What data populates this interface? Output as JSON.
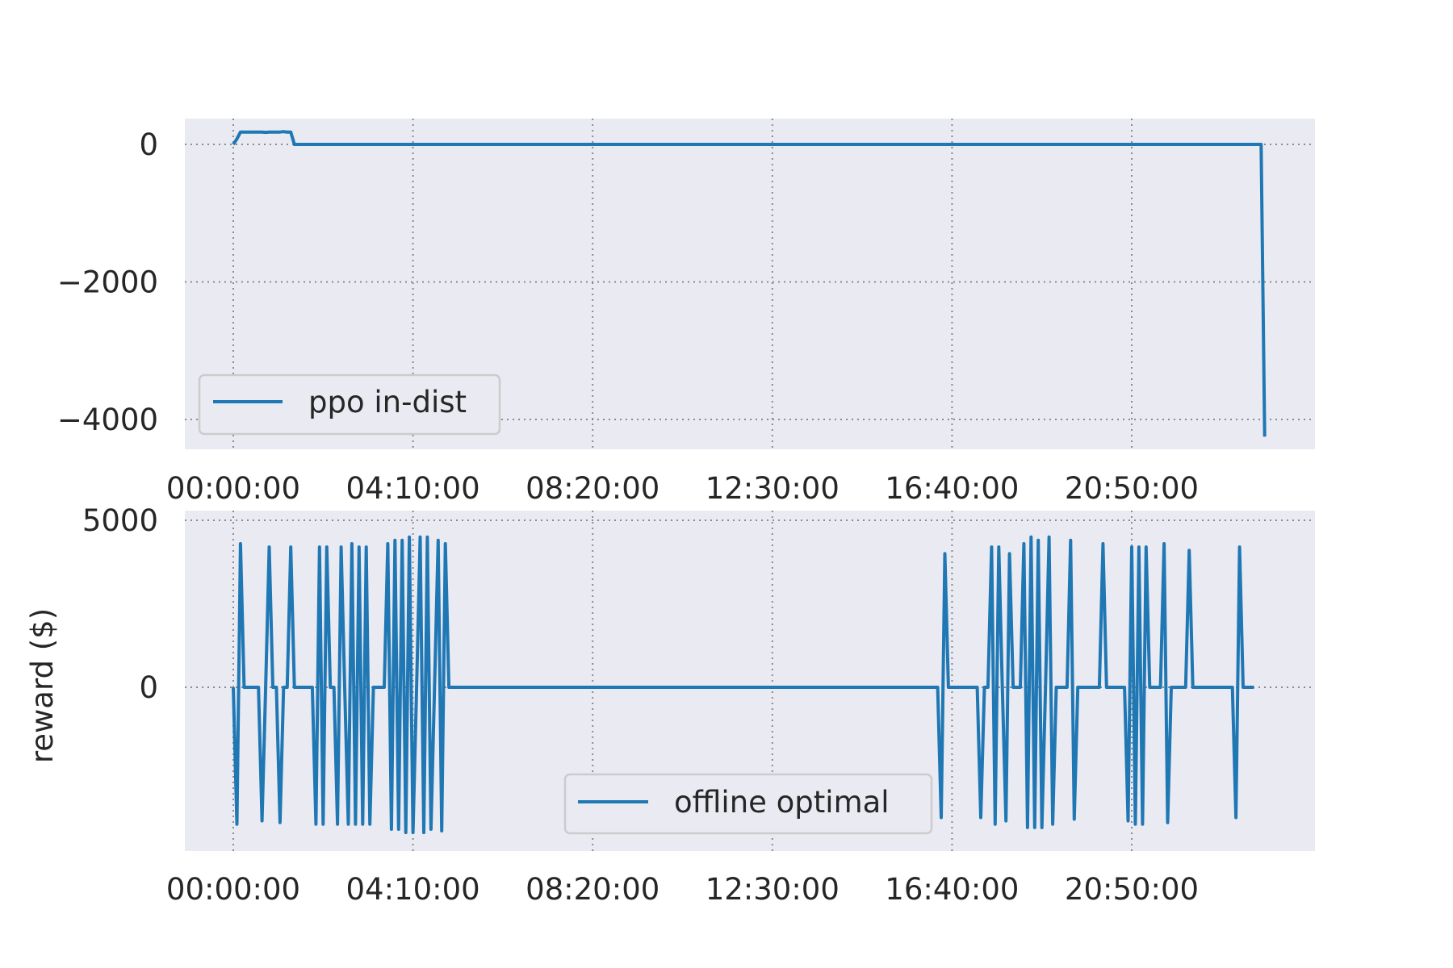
{
  "chart_data": [
    {
      "type": "line",
      "ylabel": "",
      "ylim": [
        -4500,
        380
      ],
      "xlim": [
        "00:00:00",
        "28:47:00"
      ],
      "x_ticks": [
        "00:00:00",
        "04:10:00",
        "08:20:00",
        "12:30:00",
        "16:40:00",
        "20:50:00"
      ],
      "y_ticks": [
        {
          "value": 0,
          "label": "0"
        },
        {
          "value": -2000,
          "label": "−2000"
        },
        {
          "value": -4000,
          "label": "−4000"
        }
      ],
      "grid": true,
      "legend": "lower-left",
      "color": "#1f77b4",
      "series": [
        {
          "name": "ppo in-dist",
          "points": [
            [
              "00:00:00",
              0
            ],
            [
              "00:05:00",
              80
            ],
            [
              "00:10:00",
              180
            ],
            [
              "00:40:00",
              180
            ],
            [
              "00:45:00",
              175
            ],
            [
              "00:50:00",
              180
            ],
            [
              "01:05:00",
              180
            ],
            [
              "01:10:00",
              185
            ],
            [
              "01:15:00",
              180
            ],
            [
              "01:20:00",
              180
            ],
            [
              "01:25:00",
              0
            ],
            [
              "23:50:00",
              0
            ],
            [
              "23:55:00",
              -4250
            ]
          ]
        }
      ]
    },
    {
      "type": "line",
      "ylabel": "reward ($)",
      "ylim": [
        -4800,
        5000
      ],
      "xlim": [
        "00:00:00",
        "28:47:00"
      ],
      "x_ticks": [
        "00:00:00",
        "04:10:00",
        "08:20:00",
        "12:30:00",
        "16:40:00",
        "20:50:00"
      ],
      "y_ticks": [
        {
          "value": 5000,
          "label": "5000"
        },
        {
          "value": 0,
          "label": "0"
        }
      ],
      "grid": true,
      "legend": "lower-center",
      "color": "#1f77b4",
      "series": [
        {
          "name": "offline optimal",
          "points": [
            [
              "00:00:00",
              0
            ],
            [
              "00:05:00",
              -4100
            ],
            [
              "00:10:00",
              4300
            ],
            [
              "00:15:00",
              0
            ],
            [
              "00:20:00",
              0
            ],
            [
              "00:35:00",
              0
            ],
            [
              "00:40:00",
              -4000
            ],
            [
              "00:45:00",
              0
            ],
            [
              "00:50:00",
              4200
            ],
            [
              "00:55:00",
              0
            ],
            [
              "01:00:00",
              0
            ],
            [
              "01:05:00",
              -4050
            ],
            [
              "01:10:00",
              0
            ],
            [
              "01:15:00",
              0
            ],
            [
              "01:20:00",
              4200
            ],
            [
              "01:25:00",
              0
            ],
            [
              "01:50:00",
              0
            ],
            [
              "01:55:00",
              -4100
            ],
            [
              "02:00:00",
              4200
            ],
            [
              "02:05:00",
              -4100
            ],
            [
              "02:10:00",
              4200
            ],
            [
              "02:15:00",
              0
            ],
            [
              "02:20:00",
              0
            ],
            [
              "02:25:00",
              -4100
            ],
            [
              "02:30:00",
              4200
            ],
            [
              "02:35:00",
              0
            ],
            [
              "02:40:00",
              -4100
            ],
            [
              "02:45:00",
              4300
            ],
            [
              "02:50:00",
              -4100
            ],
            [
              "02:55:00",
              4200
            ],
            [
              "03:00:00",
              -4100
            ],
            [
              "03:05:00",
              4200
            ],
            [
              "03:10:00",
              -4100
            ],
            [
              "03:15:00",
              0
            ],
            [
              "03:30:00",
              0
            ],
            [
              "03:35:00",
              4300
            ],
            [
              "03:40:00",
              -4250
            ],
            [
              "03:45:00",
              4400
            ],
            [
              "03:50:00",
              -4250
            ],
            [
              "03:55:00",
              4400
            ],
            [
              "04:00:00",
              -4350
            ],
            [
              "04:05:00",
              4500
            ],
            [
              "04:10:00",
              -4350
            ],
            [
              "04:15:00",
              0
            ],
            [
              "04:20:00",
              4500
            ],
            [
              "04:25:00",
              -4350
            ],
            [
              "04:30:00",
              4500
            ],
            [
              "04:35:00",
              -4250
            ],
            [
              "04:40:00",
              0
            ],
            [
              "04:45:00",
              4400
            ],
            [
              "04:50:00",
              -4300
            ],
            [
              "04:55:00",
              4300
            ],
            [
              "05:00:00",
              0
            ],
            [
              "16:20:00",
              0
            ],
            [
              "16:25:00",
              -3900
            ],
            [
              "16:30:00",
              4000
            ],
            [
              "16:35:00",
              0
            ],
            [
              "17:15:00",
              0
            ],
            [
              "17:20:00",
              -3900
            ],
            [
              "17:25:00",
              0
            ],
            [
              "17:30:00",
              0
            ],
            [
              "17:35:00",
              4200
            ],
            [
              "17:40:00",
              -4100
            ],
            [
              "17:45:00",
              4200
            ],
            [
              "17:50:00",
              0
            ],
            [
              "17:55:00",
              -4000
            ],
            [
              "18:00:00",
              4000
            ],
            [
              "18:05:00",
              0
            ],
            [
              "18:15:00",
              0
            ],
            [
              "18:20:00",
              4300
            ],
            [
              "18:25:00",
              -4200
            ],
            [
              "18:30:00",
              4500
            ],
            [
              "18:35:00",
              -4200
            ],
            [
              "18:40:00",
              4400
            ],
            [
              "18:45:00",
              -4200
            ],
            [
              "18:50:00",
              0
            ],
            [
              "18:55:00",
              4500
            ],
            [
              "19:00:00",
              -4100
            ],
            [
              "19:05:00",
              0
            ],
            [
              "19:20:00",
              0
            ],
            [
              "19:25:00",
              4400
            ],
            [
              "19:30:00",
              -3950
            ],
            [
              "19:35:00",
              0
            ],
            [
              "20:05:00",
              0
            ],
            [
              "20:10:00",
              4300
            ],
            [
              "20:15:00",
              0
            ],
            [
              "20:40:00",
              0
            ],
            [
              "20:45:00",
              -4000
            ],
            [
              "20:50:00",
              4200
            ],
            [
              "20:55:00",
              -4100
            ],
            [
              "21:00:00",
              4200
            ],
            [
              "21:05:00",
              -4100
            ],
            [
              "21:10:00",
              4200
            ],
            [
              "21:15:00",
              0
            ],
            [
              "21:30:00",
              0
            ],
            [
              "21:35:00",
              4300
            ],
            [
              "21:40:00",
              -4050
            ],
            [
              "21:45:00",
              0
            ],
            [
              "22:05:00",
              0
            ],
            [
              "22:10:00",
              4100
            ],
            [
              "22:15:00",
              0
            ],
            [
              "23:10:00",
              0
            ],
            [
              "23:15:00",
              -3900
            ],
            [
              "23:20:00",
              4200
            ],
            [
              "23:25:00",
              0
            ],
            [
              "23:40:00",
              0
            ]
          ]
        }
      ]
    }
  ]
}
